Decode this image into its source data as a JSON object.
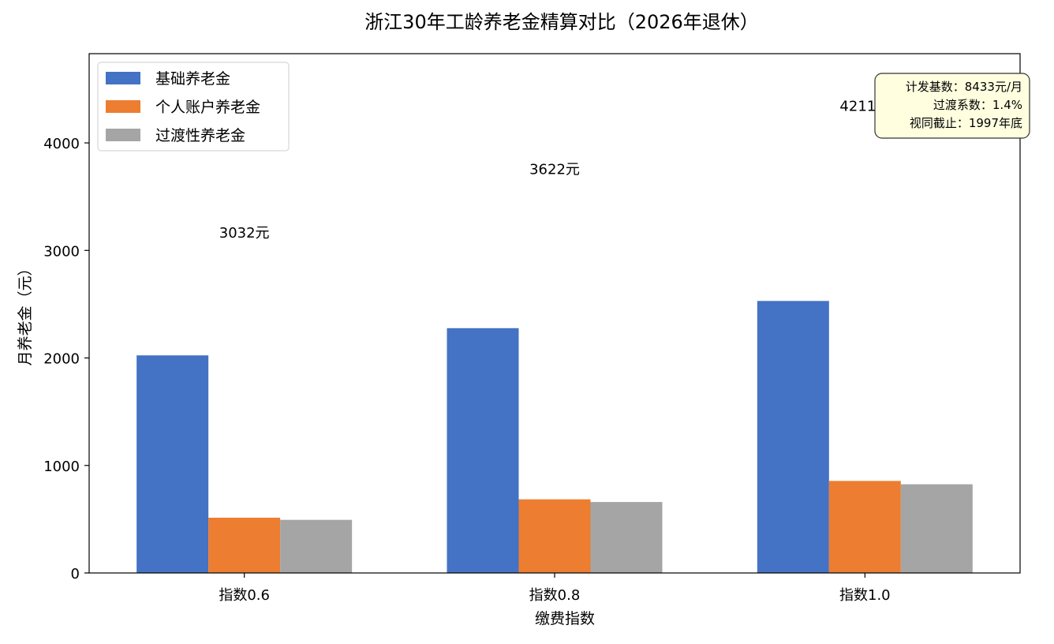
{
  "chart_data": {
    "type": "bar",
    "title": "浙江30年工龄养老金精算对比（2026年退休）",
    "xlabel": "缴费指数",
    "ylabel": "月养老金（元）",
    "categories": [
      "指数0.6",
      "指数0.8",
      "指数1.0"
    ],
    "series": [
      {
        "name": "基础养老金",
        "color": "#4472C4",
        "values": [
          2024,
          2277,
          2530
        ]
      },
      {
        "name": "个人账户养老金",
        "color": "#ED7D31",
        "values": [
          514,
          685,
          856
        ]
      },
      {
        "name": "过渡性养老金",
        "color": "#A5A5A5",
        "values": [
          494,
          660,
          825
        ]
      }
    ],
    "totals": [
      "3032元",
      "3622元",
      "4211元"
    ],
    "total_values": [
      3032,
      3622,
      4211
    ],
    "ylim": [
      0,
      4830
    ],
    "yticks": [
      0,
      1000,
      2000,
      3000,
      4000
    ],
    "grid": false,
    "legend_position": "top-left",
    "info_box": {
      "lines": [
        "计发基数：8433元/月",
        "过渡系数：1.4%",
        "视同截止：1997年底"
      ],
      "background": "#FFFFE0"
    }
  }
}
